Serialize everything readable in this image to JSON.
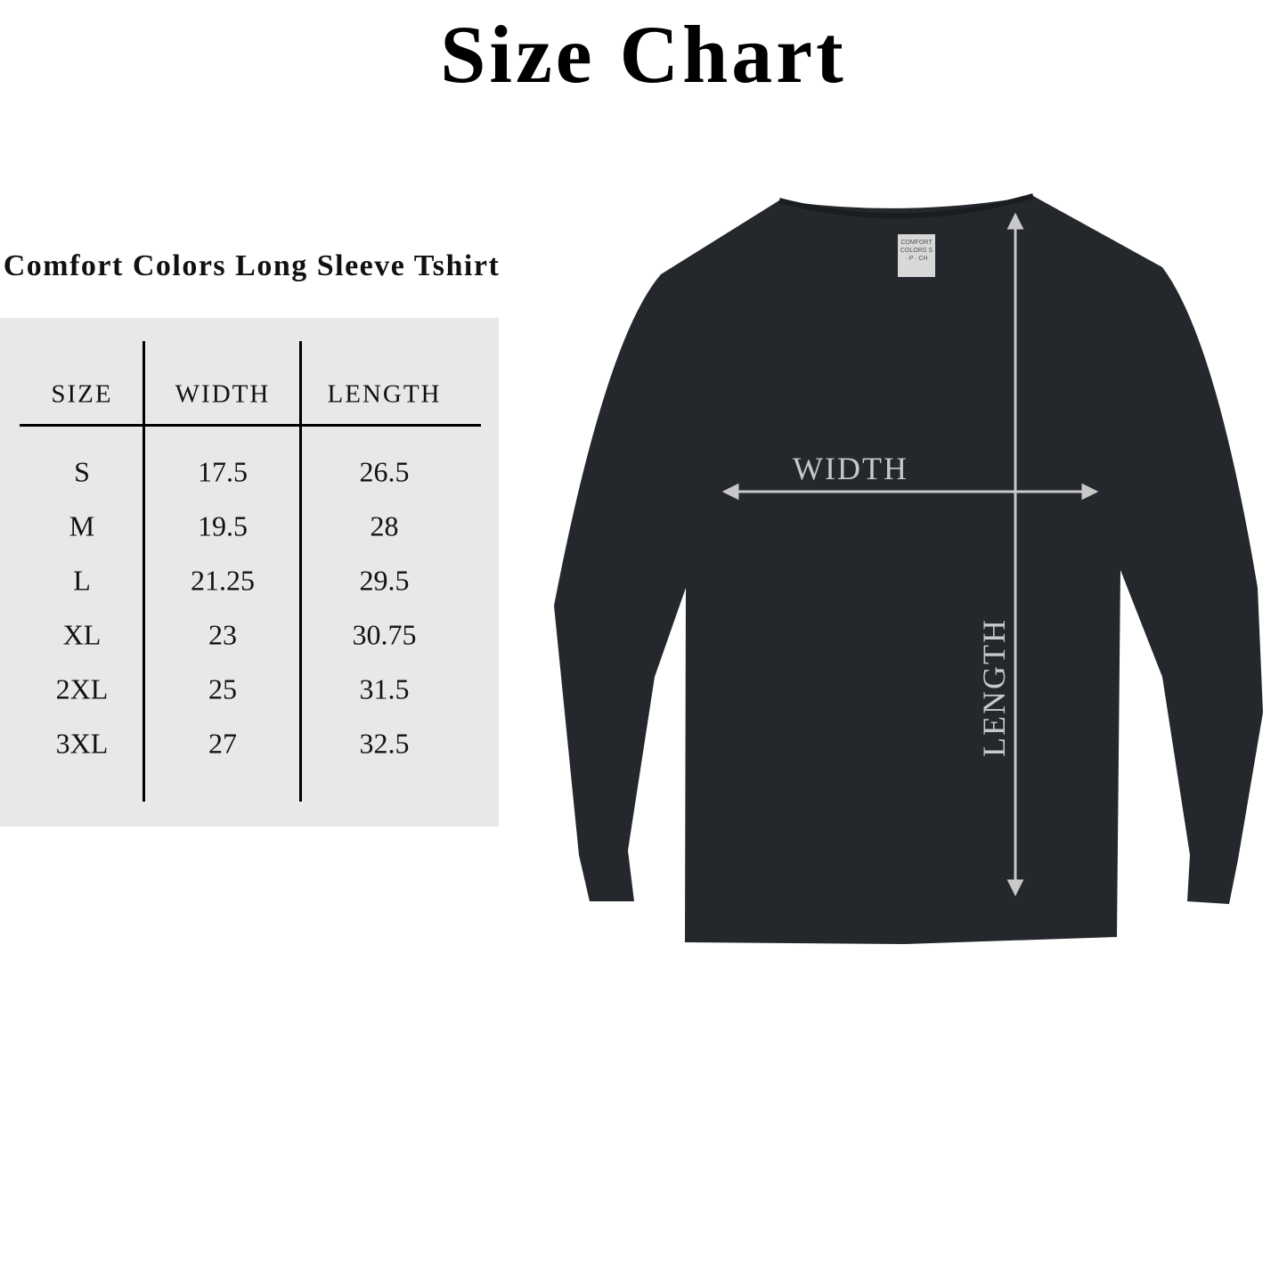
{
  "title": "Size Chart",
  "subtitle": "Comfort Colors Long Sleeve Tshirt",
  "table": {
    "headers": [
      "SIZE",
      "WIDTH",
      "LENGTH"
    ],
    "rows": [
      [
        "S",
        "17.5",
        "26.5"
      ],
      [
        "M",
        "19.5",
        "28"
      ],
      [
        "L",
        "21.25",
        "29.5"
      ],
      [
        "XL",
        "23",
        "30.75"
      ],
      [
        "2XL",
        "25",
        "31.5"
      ],
      [
        "3XL",
        "27",
        "32.5"
      ]
    ]
  },
  "diagram": {
    "width_label": "WIDTH",
    "length_label": "LENGTH",
    "tag_text": "COMFORT COLORS S · P · CH",
    "shirt_color": "#24282c",
    "arrow_color": "#c8c8c8"
  }
}
